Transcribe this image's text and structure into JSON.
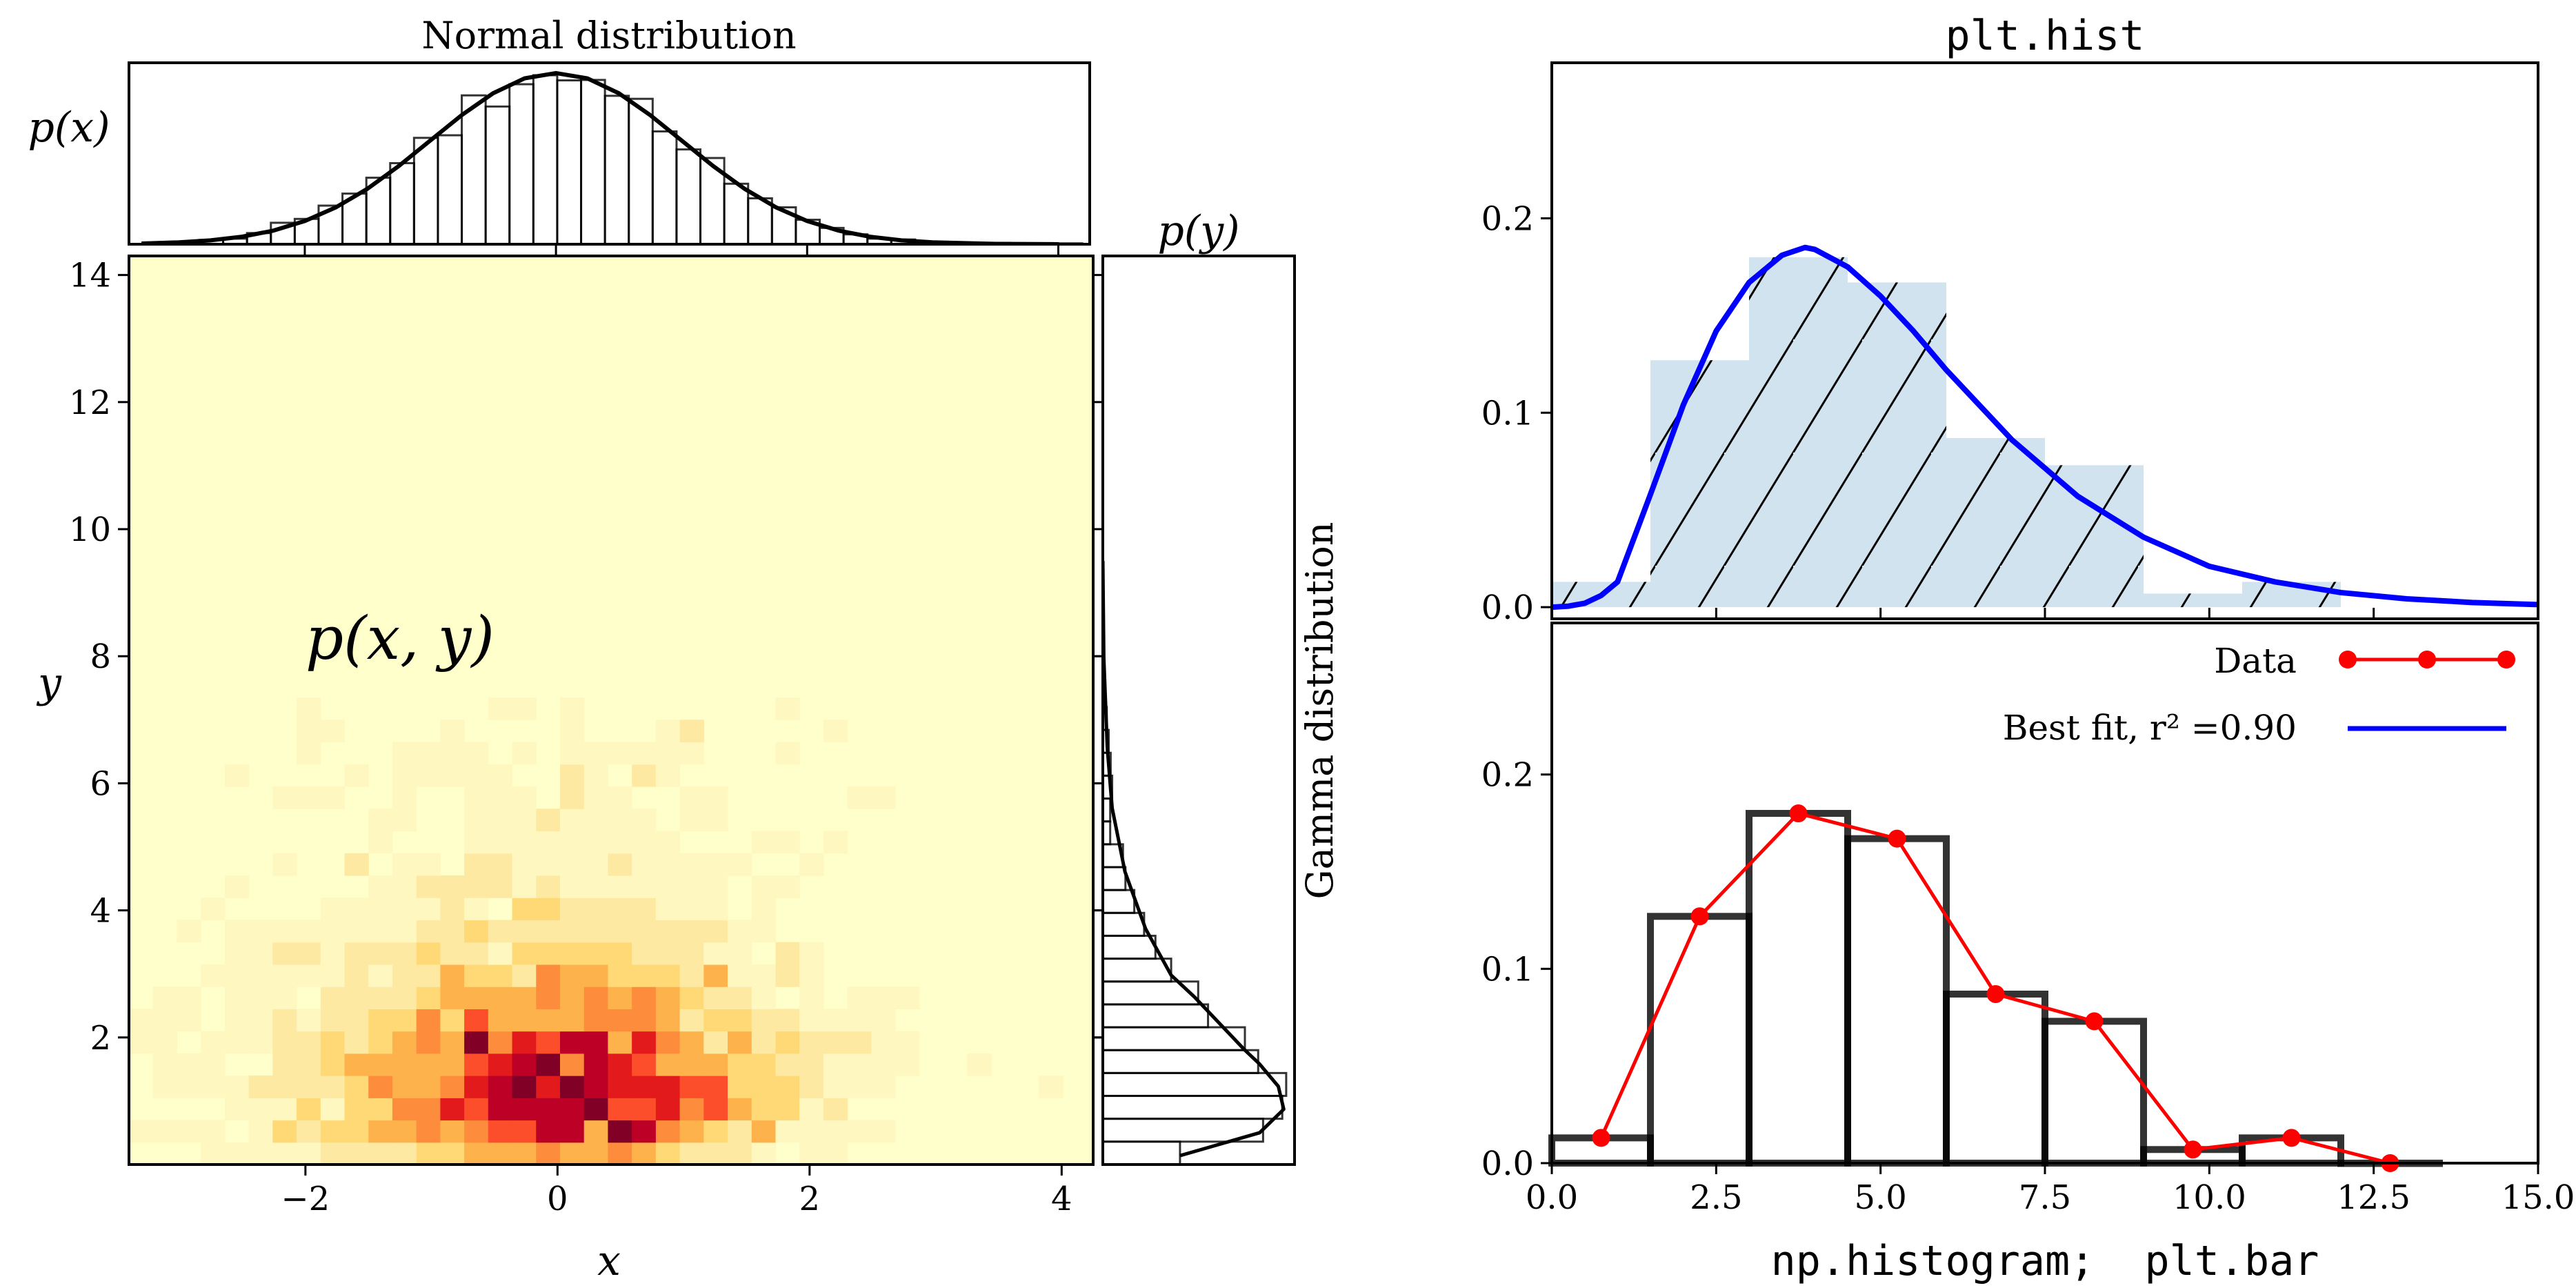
{
  "chart_data": [
    {
      "type": "heatmap",
      "xlabel": "x",
      "ylabel": "y",
      "annotation": "p(x, y)",
      "xlim": [
        -3.4,
        4.25
      ],
      "ylim": [
        0,
        14.3
      ],
      "xticks": [
        -2,
        0,
        2,
        4
      ],
      "xtick_labels": [
        "−2",
        "0",
        "2",
        "4"
      ],
      "yticks": [
        2,
        4,
        6,
        8,
        10,
        12,
        14
      ],
      "ytick_labels": [
        "2",
        "4",
        "6",
        "8",
        "10",
        "12",
        "14"
      ],
      "x_bin_start": -3.4,
      "x_bin_width": 0.19,
      "y_bin_start": 0,
      "y_bin_width": 0.35,
      "colormap": [
        "#ffffcc",
        "#fff7c0",
        "#fee9a3",
        "#fed976",
        "#feb24c",
        "#fd8d3c",
        "#fc4e2a",
        "#e31a1c",
        "#bd0026",
        "#800026"
      ],
      "intensity_rows_from_bottom": [
        [
          0,
          0,
          0,
          1,
          1,
          1,
          1,
          1,
          2,
          2,
          2,
          2,
          3,
          3,
          4,
          4,
          4,
          5,
          4,
          4,
          5,
          4,
          3,
          2,
          2,
          2,
          1,
          0,
          1,
          1,
          0,
          0,
          0,
          0,
          0,
          0,
          0,
          0,
          0,
          0
        ],
        [
          1,
          1,
          1,
          1,
          0,
          1,
          3,
          2,
          3,
          3,
          4,
          4,
          5,
          4,
          5,
          6,
          6,
          8,
          8,
          4,
          9,
          8,
          5,
          4,
          3,
          2,
          4,
          1,
          1,
          1,
          1,
          1,
          0,
          0,
          0,
          0,
          0,
          0,
          0,
          0
        ],
        [
          0,
          0,
          0,
          0,
          1,
          1,
          1,
          3,
          1,
          3,
          3,
          5,
          5,
          7,
          6,
          8,
          8,
          8,
          8,
          9,
          6,
          6,
          7,
          5,
          6,
          4,
          3,
          3,
          1,
          2,
          0,
          0,
          0,
          0,
          0,
          0,
          0,
          0,
          0,
          0
        ],
        [
          0,
          1,
          1,
          1,
          1,
          2,
          2,
          2,
          2,
          3,
          5,
          4,
          4,
          5,
          7,
          8,
          9,
          7,
          9,
          8,
          7,
          7,
          7,
          6,
          6,
          3,
          3,
          3,
          2,
          1,
          1,
          1,
          0,
          0,
          0,
          0,
          0,
          0,
          1,
          0
        ],
        [
          0,
          1,
          1,
          1,
          0,
          0,
          2,
          2,
          3,
          4,
          4,
          4,
          4,
          4,
          6,
          7,
          8,
          9,
          5,
          8,
          7,
          6,
          4,
          4,
          4,
          3,
          3,
          2,
          2,
          1,
          1,
          1,
          1,
          0,
          0,
          1,
          0,
          0,
          0,
          0
        ],
        [
          1,
          1,
          0,
          1,
          1,
          1,
          2,
          2,
          3,
          2,
          3,
          4,
          5,
          4,
          9,
          5,
          7,
          6,
          8,
          8,
          4,
          7,
          5,
          4,
          2,
          4,
          2,
          3,
          2,
          2,
          2,
          1,
          1,
          0,
          0,
          0,
          0,
          0,
          0,
          0
        ],
        [
          1,
          1,
          1,
          0,
          1,
          1,
          2,
          1,
          2,
          2,
          3,
          3,
          5,
          3,
          6,
          4,
          4,
          4,
          4,
          5,
          5,
          5,
          4,
          2,
          3,
          3,
          2,
          2,
          1,
          1,
          1,
          1,
          0,
          0,
          0,
          0,
          0,
          0,
          0,
          0
        ],
        [
          0,
          1,
          1,
          0,
          1,
          1,
          1,
          0,
          2,
          2,
          2,
          2,
          3,
          4,
          4,
          4,
          4,
          5,
          4,
          5,
          4,
          5,
          4,
          3,
          2,
          2,
          1,
          0,
          1,
          0,
          1,
          1,
          1,
          0,
          0,
          0,
          0,
          0,
          0,
          0
        ],
        [
          0,
          0,
          0,
          1,
          1,
          1,
          1,
          1,
          1,
          2,
          1,
          2,
          2,
          4,
          3,
          3,
          2,
          5,
          4,
          4,
          3,
          3,
          3,
          2,
          4,
          1,
          1,
          2,
          1,
          0,
          0,
          0,
          0,
          0,
          0,
          0,
          0,
          0,
          0,
          0
        ],
        [
          0,
          0,
          0,
          0,
          1,
          1,
          2,
          2,
          1,
          2,
          2,
          2,
          3,
          2,
          2,
          1,
          3,
          3,
          3,
          3,
          3,
          2,
          2,
          2,
          1,
          1,
          0,
          2,
          1,
          0,
          0,
          0,
          0,
          0,
          0,
          0,
          0,
          0,
          0,
          0
        ],
        [
          0,
          0,
          1,
          0,
          1,
          1,
          1,
          1,
          1,
          1,
          1,
          1,
          2,
          2,
          3,
          2,
          2,
          2,
          2,
          2,
          2,
          2,
          2,
          2,
          2,
          1,
          1,
          0,
          0,
          0,
          0,
          0,
          0,
          0,
          0,
          0,
          0,
          0,
          0,
          0
        ],
        [
          0,
          0,
          0,
          1,
          0,
          0,
          0,
          0,
          1,
          1,
          1,
          1,
          1,
          2,
          1,
          0,
          3,
          3,
          2,
          2,
          2,
          2,
          1,
          1,
          1,
          0,
          1,
          0,
          0,
          0,
          0,
          0,
          0,
          0,
          0,
          0,
          0,
          0,
          0,
          0
        ],
        [
          0,
          0,
          0,
          0,
          1,
          0,
          0,
          0,
          0,
          0,
          1,
          1,
          2,
          2,
          2,
          2,
          1,
          2,
          1,
          1,
          1,
          1,
          1,
          1,
          1,
          0,
          1,
          1,
          0,
          0,
          0,
          0,
          0,
          0,
          0,
          0,
          0,
          0,
          0,
          0
        ],
        [
          0,
          0,
          0,
          0,
          0,
          0,
          1,
          0,
          0,
          2,
          0,
          1,
          1,
          0,
          2,
          2,
          1,
          1,
          1,
          1,
          2,
          1,
          1,
          1,
          1,
          1,
          0,
          0,
          1,
          0,
          0,
          0,
          0,
          0,
          0,
          0,
          0,
          0,
          0,
          0
        ],
        [
          0,
          0,
          0,
          0,
          0,
          0,
          0,
          0,
          0,
          0,
          1,
          0,
          0,
          0,
          1,
          1,
          1,
          1,
          1,
          1,
          1,
          1,
          1,
          0,
          0,
          0,
          1,
          1,
          0,
          1,
          0,
          0,
          0,
          0,
          0,
          0,
          0,
          0,
          0,
          0
        ],
        [
          0,
          0,
          0,
          0,
          0,
          0,
          0,
          0,
          0,
          0,
          1,
          1,
          0,
          0,
          1,
          1,
          1,
          2,
          1,
          1,
          1,
          1,
          0,
          1,
          1,
          0,
          0,
          0,
          0,
          0,
          0,
          0,
          0,
          0,
          0,
          0,
          0,
          0,
          0,
          0
        ],
        [
          0,
          0,
          0,
          0,
          0,
          0,
          1,
          1,
          1,
          0,
          0,
          1,
          0,
          0,
          1,
          1,
          1,
          0,
          2,
          1,
          1,
          0,
          0,
          1,
          1,
          0,
          0,
          0,
          0,
          0,
          1,
          1,
          0,
          0,
          0,
          0,
          0,
          0,
          0,
          0
        ],
        [
          0,
          0,
          0,
          0,
          1,
          0,
          0,
          0,
          0,
          1,
          0,
          1,
          1,
          1,
          1,
          1,
          0,
          0,
          2,
          1,
          0,
          2,
          1,
          0,
          0,
          0,
          0,
          0,
          0,
          0,
          0,
          0,
          0,
          0,
          0,
          0,
          0,
          0,
          0,
          0
        ],
        [
          0,
          0,
          0,
          0,
          0,
          0,
          0,
          1,
          0,
          0,
          0,
          1,
          1,
          1,
          1,
          0,
          1,
          0,
          1,
          1,
          1,
          1,
          1,
          1,
          0,
          0,
          0,
          1,
          0,
          0,
          0,
          0,
          0,
          0,
          0,
          0,
          0,
          0,
          0,
          0
        ],
        [
          0,
          0,
          0,
          0,
          0,
          0,
          0,
          1,
          1,
          0,
          0,
          0,
          0,
          1,
          0,
          0,
          0,
          0,
          1,
          0,
          0,
          0,
          1,
          2,
          0,
          0,
          0,
          0,
          0,
          1,
          0,
          0,
          0,
          0,
          0,
          0,
          0,
          0,
          0,
          0
        ],
        [
          0,
          0,
          0,
          0,
          0,
          0,
          0,
          1,
          0,
          0,
          0,
          0,
          0,
          0,
          0,
          1,
          1,
          0,
          1,
          0,
          0,
          0,
          0,
          0,
          0,
          0,
          0,
          1,
          0,
          0,
          0,
          0,
          0,
          0,
          0,
          0,
          0,
          0,
          0,
          0
        ]
      ]
    },
    {
      "type": "bar",
      "title": "Normal distribution",
      "ylabel": "p(x)",
      "xlim": [
        -3.4,
        4.25
      ],
      "ylim": [
        0,
        0.423
      ],
      "xticks": [
        -2,
        0,
        2,
        4
      ],
      "bin_start": -3.22,
      "bin_width": 0.19,
      "density": [
        0.003,
        0.004,
        0.01,
        0.013,
        0.026,
        0.05,
        0.059,
        0.09,
        0.118,
        0.155,
        0.189,
        0.248,
        0.254,
        0.347,
        0.321,
        0.373,
        0.394,
        0.382,
        0.383,
        0.346,
        0.339,
        0.263,
        0.221,
        0.201,
        0.141,
        0.107,
        0.086,
        0.057,
        0.038,
        0.023,
        0.013,
        0.011,
        0.005,
        0.004,
        0.003,
        0.003,
        0.002,
        0.002,
        0.002
      ],
      "curve": {
        "x": [
          -3.3,
          -3.0,
          -2.75,
          -2.5,
          -2.25,
          -2.0,
          -1.75,
          -1.5,
          -1.25,
          -1.0,
          -0.75,
          -0.5,
          -0.25,
          0,
          0.25,
          0.5,
          0.75,
          1.0,
          1.25,
          1.5,
          1.75,
          2.0,
          2.25,
          2.5,
          2.75,
          3.0,
          3.5,
          4.0
        ],
        "y": [
          0.0017,
          0.0044,
          0.0091,
          0.0175,
          0.0317,
          0.054,
          0.0863,
          0.1295,
          0.1826,
          0.242,
          0.3011,
          0.352,
          0.3867,
          0.399,
          0.3867,
          0.352,
          0.3011,
          0.242,
          0.1826,
          0.1295,
          0.0863,
          0.054,
          0.0317,
          0.0175,
          0.0091,
          0.0044,
          0.0009,
          0.0001
        ]
      }
    },
    {
      "type": "bar",
      "orientation": "horizontal",
      "title": "p(y)",
      "ylabel": "Gamma distribution",
      "xlim": [
        0,
        0.39
      ],
      "ylim": [
        0,
        14.3
      ],
      "yticks": [
        2,
        4,
        6,
        8
      ],
      "bin_start": 0,
      "bin_width": 0.36,
      "density": [
        0.157,
        0.326,
        0.365,
        0.373,
        0.316,
        0.289,
        0.214,
        0.194,
        0.139,
        0.107,
        0.084,
        0.064,
        0.046,
        0.041,
        0.015,
        0.015,
        0.019,
        0.016,
        0.012,
        0.008,
        0.005
      ],
      "curve": {
        "y": [
          0.14,
          0.5,
          0.87,
          1.23,
          1.58,
          1.8,
          2.64,
          2.98,
          3.71,
          4.61,
          5.61,
          6.57,
          7.97,
          9.5
        ],
        "x": [
          0.157,
          0.319,
          0.368,
          0.357,
          0.319,
          0.289,
          0.186,
          0.139,
          0.087,
          0.045,
          0.019,
          0.009,
          0.002,
          0.0
        ]
      }
    },
    {
      "type": "bar",
      "title": "plt.hist",
      "xlim": [
        0,
        15
      ],
      "ylim": [
        -0.006,
        0.28
      ],
      "xticks": [
        0,
        2.5,
        5,
        7.5,
        10,
        12.5,
        15
      ],
      "yticks": [
        0,
        0.1,
        0.2
      ],
      "ytick_labels": [
        "0.0",
        "0.1",
        "0.2"
      ],
      "bin_edges": [
        0,
        1.5,
        3,
        4.5,
        6,
        7.5,
        9,
        10.5,
        12,
        13.5
      ],
      "values": [
        0.013,
        0.127,
        0.18,
        0.167,
        0.087,
        0.073,
        0.007,
        0.013,
        0.0
      ],
      "fill_color": "#d2e3f0",
      "hatch": "/",
      "fit_curve": {
        "color": "#0000ff",
        "x": [
          0,
          0.25,
          0.5,
          0.75,
          1,
          1.5,
          2,
          2.5,
          3,
          3.5,
          3.85,
          4,
          4.5,
          5,
          5.5,
          6,
          7,
          8,
          9,
          10,
          11,
          12,
          13,
          14,
          15
        ],
        "y": [
          0,
          0.0005,
          0.002,
          0.006,
          0.013,
          0.058,
          0.104,
          0.142,
          0.167,
          0.181,
          0.185,
          0.184,
          0.175,
          0.16,
          0.142,
          0.122,
          0.086,
          0.057,
          0.036,
          0.021,
          0.013,
          0.0075,
          0.0043,
          0.0024,
          0.0013
        ]
      }
    },
    {
      "type": "bar",
      "xlabel": "np.histogram;  plt.bar",
      "xlim": [
        0,
        15
      ],
      "ylim": [
        0,
        0.278
      ],
      "xticks": [
        0,
        2.5,
        5,
        7.5,
        10,
        12.5,
        15
      ],
      "xtick_labels": [
        "0.0",
        "2.5",
        "5.0",
        "7.5",
        "10.0",
        "12.5",
        "15.0"
      ],
      "yticks": [
        0,
        0.1,
        0.2
      ],
      "ytick_labels": [
        "0.0",
        "0.1",
        "0.2"
      ],
      "bin_edges": [
        0,
        1.5,
        3,
        4.5,
        6,
        7.5,
        9,
        10.5,
        12,
        13.5
      ],
      "values": [
        0.013,
        0.127,
        0.18,
        0.167,
        0.087,
        0.073,
        0.007,
        0.013,
        0.0
      ],
      "series": [
        {
          "name": "Data",
          "color": "#ff0000",
          "x": [
            0.75,
            2.25,
            3.75,
            5.25,
            6.75,
            8.25,
            9.75,
            11.25,
            12.75
          ],
          "y": [
            0.013,
            0.127,
            0.18,
            0.167,
            0.087,
            0.073,
            0.007,
            0.013,
            0.0
          ]
        }
      ],
      "legend": [
        {
          "label": "Data",
          "color": "#ff0000",
          "marker": "circle"
        },
        {
          "label": "Best fit, r² =0.90",
          "color": "#0000ff",
          "marker": "none"
        }
      ],
      "legend_position": "top-right"
    }
  ]
}
